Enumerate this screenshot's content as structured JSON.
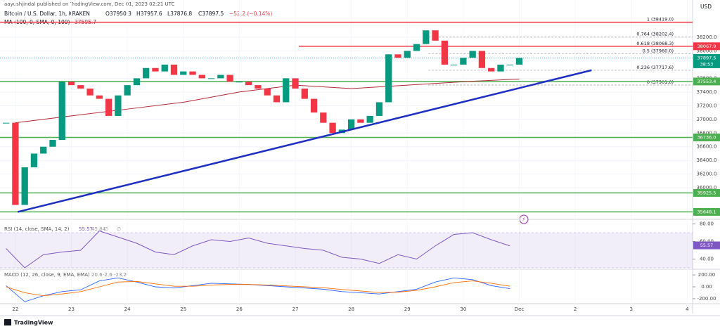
{
  "header": {
    "publisher": "aayushjindal published on TradingView.com, Dec 01, 2023 02:21 UTC",
    "symbol": "Bitcoin / U.S. Dollar, 1h, KRAKEN",
    "open": "O37950.3",
    "high": "H37957.6",
    "low": "L37876.8",
    "close": "C37897.5",
    "change": "−52.2 (−0.14%)",
    "ma_label": "MA (100, 0, SMA, 0, 100)",
    "ma_value": "37595.7"
  },
  "chart_data": {
    "type": "candlestick",
    "currency": "USD",
    "x": [
      -4,
      0,
      4,
      8,
      12,
      16,
      20,
      24,
      28,
      32,
      36,
      40,
      44,
      48,
      52,
      56,
      60,
      64,
      68,
      72,
      76,
      80,
      84,
      88,
      92,
      96,
      100,
      104,
      108,
      112,
      116,
      120,
      124,
      128,
      132,
      136,
      140,
      144,
      148,
      152,
      156,
      160,
      164,
      168,
      172,
      176,
      180,
      184,
      188,
      192,
      196,
      200,
      204,
      208,
      212,
      216
    ],
    "close": [
      36950,
      35750,
      36300,
      36500,
      36600,
      36700,
      37550,
      37500,
      37450,
      37350,
      37300,
      37050,
      37350,
      37500,
      37600,
      37750,
      37700,
      37800,
      37650,
      37700,
      37650,
      37600,
      37600,
      37650,
      37550,
      37550,
      37500,
      37450,
      37350,
      37250,
      37600,
      37450,
      37300,
      37100,
      36950,
      36800,
      36850,
      37000,
      36950,
      37050,
      37250,
      37950,
      37900,
      38000,
      38100,
      38300,
      38150,
      37800,
      37800,
      37900,
      38000,
      37750,
      37700,
      37800,
      37800,
      37897.5
    ],
    "up_color": "#089981",
    "down_color": "#f23645",
    "xlim": [
      -6.6,
      290.3
    ],
    "xticks": [
      {
        "value": 0,
        "label": "22"
      },
      {
        "value": 24,
        "label": "23"
      },
      {
        "value": 48,
        "label": "24"
      },
      {
        "value": 72,
        "label": "25"
      },
      {
        "value": 96,
        "label": "26"
      },
      {
        "value": 120,
        "label": "27"
      },
      {
        "value": 144,
        "label": "28"
      },
      {
        "value": 168,
        "label": "29"
      },
      {
        "value": 192,
        "label": "30"
      },
      {
        "value": 216,
        "label": "Dec"
      },
      {
        "value": 240,
        "label": "2"
      },
      {
        "value": 264,
        "label": "3"
      },
      {
        "value": 288,
        "label": "4"
      }
    ],
    "ylim": [
      35560,
      38600
    ],
    "yticks": [
      {
        "value": 38200,
        "label": "38200.0"
      },
      {
        "value": 38000,
        "label": "38000.0"
      },
      {
        "value": 37600,
        "label": "37600.0"
      },
      {
        "value": 37400,
        "label": "37400.0"
      },
      {
        "value": 37200,
        "label": "37200.0"
      },
      {
        "value": 37000,
        "label": "37000.0"
      },
      {
        "value": 36800,
        "label": "36800.0"
      },
      {
        "value": 36600,
        "label": "36600.0"
      },
      {
        "value": 36400,
        "label": "36400.0"
      },
      {
        "value": 36200,
        "label": "36200.0"
      },
      {
        "value": 36000,
        "label": "36000.0"
      }
    ],
    "ma": {
      "color": "#b22833",
      "x": [
        0,
        24,
        48,
        72,
        96,
        120,
        144,
        168,
        192,
        216
      ],
      "values": [
        36950,
        37050,
        37150,
        37250,
        37400,
        37500,
        37450,
        37500,
        37550,
        37590
      ]
    },
    "support_lines": {
      "color": "#4caf50",
      "values": [
        37553.4,
        {
          "value": 36736,
          "label": "36736.0"
        },
        35925.5,
        35648.1
      ]
    },
    "resistance_lines": {
      "color": "#f23645",
      "values": [
        38419,
        38067.9
      ],
      "axis_label": [
        false,
        true
      ]
    },
    "trendline": {
      "color": "#1e2fc1",
      "x": [
        1,
        247
      ],
      "y": [
        35648,
        37718
      ]
    },
    "fib": {
      "color": "#9e9e9e",
      "from": 177,
      "levels": [
        {
          "value": 38419,
          "label": "1 (38419.0)"
        },
        {
          "value": 38202.4,
          "label": "0.764 (38202.4)"
        },
        {
          "value": 38068.3,
          "label": "0.618 (38068.3)"
        },
        {
          "value": 37960,
          "label": "0.5 (37960.0)"
        },
        {
          "value": 37717.6,
          "label": "0.236 (37717.6)"
        },
        {
          "value": 37501,
          "label": "0 (37501.0)"
        }
      ]
    },
    "last_price": 37897.5,
    "countdown": "38:53",
    "rsi": {
      "title": "RSI (14, close, SMA, 14, 2)",
      "legend": [
        "55.57",
        "45.84",
        "∅",
        "∅"
      ],
      "color": "#7e57c2",
      "x": [
        -4,
        4,
        12,
        20,
        28,
        36,
        44,
        52,
        60,
        68,
        76,
        84,
        92,
        100,
        108,
        116,
        124,
        132,
        140,
        148,
        156,
        164,
        172,
        180,
        188,
        196,
        204,
        212
      ],
      "values": [
        52,
        30,
        45,
        48,
        50,
        72,
        65,
        58,
        48,
        45,
        55,
        62,
        60,
        64,
        58,
        55,
        52,
        50,
        42,
        40,
        35,
        45,
        40,
        55,
        68,
        70,
        62,
        55
      ],
      "ylim": [
        30,
        82
      ],
      "yticks": [
        {
          "value": 80,
          "label": "80.00"
        },
        {
          "value": 60,
          "label": "60.00"
        },
        {
          "value": 40,
          "label": "40.00"
        }
      ],
      "band": [
        30,
        70
      ],
      "last": 55.57
    },
    "macd": {
      "title": "MACD (12, 26, close, 9, EMA, EMA)",
      "legend": [
        "20.6",
        "-2.6",
        "-23.2"
      ],
      "x": [
        -4,
        4,
        12,
        20,
        28,
        36,
        44,
        52,
        60,
        68,
        76,
        84,
        92,
        100,
        108,
        116,
        124,
        132,
        140,
        148,
        156,
        164,
        172,
        180,
        188,
        196,
        204,
        212
      ],
      "ylim": [
        -260,
        260
      ],
      "yticks": [
        {
          "value": 200,
          "label": "200.00"
        },
        {
          "value": 0,
          "label": "0.00"
        },
        {
          "value": -200,
          "label": "-200.00"
        }
      ],
      "series": [
        {
          "color": "#2962ff",
          "values": [
            20,
            -250,
            -150,
            -80,
            -50,
            100,
            150,
            80,
            0,
            -20,
            20,
            60,
            50,
            40,
            20,
            0,
            -20,
            -40,
            -80,
            -100,
            -120,
            -80,
            -40,
            80,
            150,
            120,
            20,
            -30
          ]
        },
        {
          "color": "#ff6d00",
          "values": [
            0,
            -100,
            -150,
            -120,
            -80,
            0,
            80,
            90,
            50,
            10,
            10,
            30,
            40,
            40,
            30,
            15,
            0,
            -15,
            -45,
            -70,
            -95,
            -90,
            -60,
            0,
            70,
            100,
            60,
            10
          ]
        }
      ]
    }
  },
  "footer": {
    "brand": "TradingView"
  }
}
